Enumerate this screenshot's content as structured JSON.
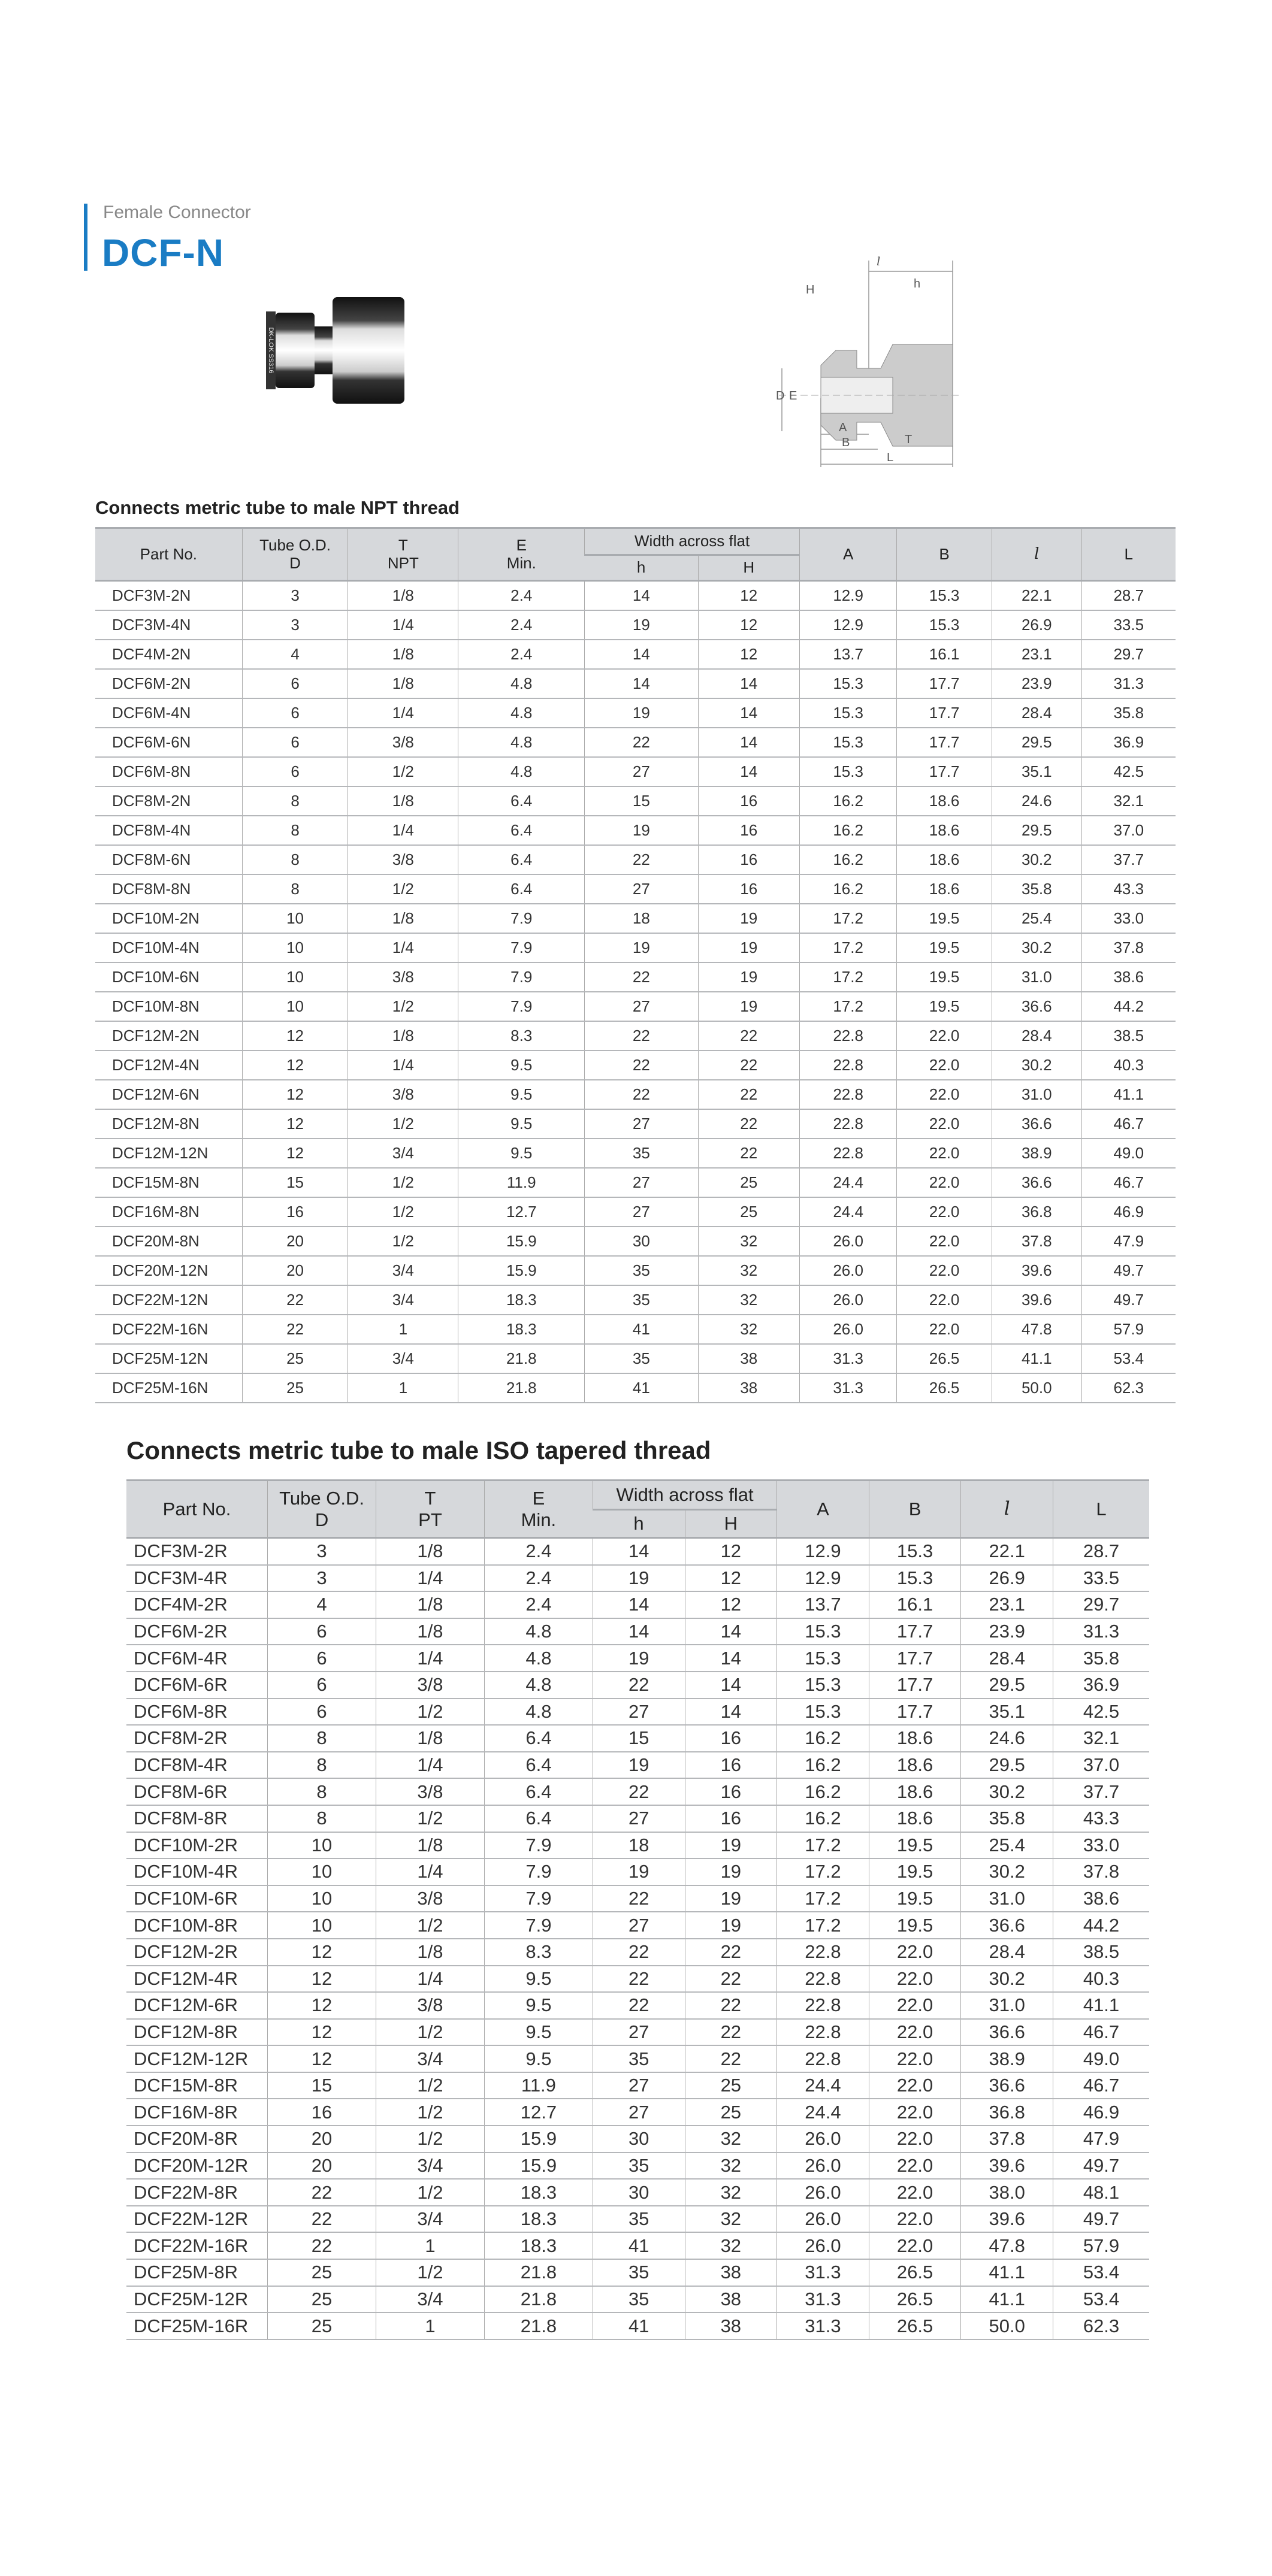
{
  "header": {
    "subtitle": "Female Connector",
    "title": "DCF-N",
    "accent_color": "#1a7cc4"
  },
  "diagram": {
    "labels": {
      "l": "l",
      "h": "h",
      "H": "H",
      "D": "D",
      "E": "E",
      "A": "A",
      "B": "B",
      "T": "T",
      "L": "L"
    }
  },
  "photo": {
    "engraving": "DK-LOK SS316"
  },
  "npt_table": {
    "title": "Connects metric tube to male NPT thread",
    "headers": {
      "part_no": "Part No.",
      "tube_od": "Tube O.D.",
      "tube_od_sub": "D",
      "t": "T",
      "t_sub": "NPT",
      "e": "E",
      "e_sub": "Min.",
      "width_across_flat": "Width across flat",
      "h": "h",
      "H": "H",
      "a": "A",
      "b": "B",
      "l": "l",
      "L": "L"
    },
    "rows": [
      [
        "DCF3M-2N",
        "3",
        "1/8",
        "2.4",
        "14",
        "12",
        "12.9",
        "15.3",
        "22.1",
        "28.7"
      ],
      [
        "DCF3M-4N",
        "3",
        "1/4",
        "2.4",
        "19",
        "12",
        "12.9",
        "15.3",
        "26.9",
        "33.5"
      ],
      [
        "DCF4M-2N",
        "4",
        "1/8",
        "2.4",
        "14",
        "12",
        "13.7",
        "16.1",
        "23.1",
        "29.7"
      ],
      [
        "DCF6M-2N",
        "6",
        "1/8",
        "4.8",
        "14",
        "14",
        "15.3",
        "17.7",
        "23.9",
        "31.3"
      ],
      [
        "DCF6M-4N",
        "6",
        "1/4",
        "4.8",
        "19",
        "14",
        "15.3",
        "17.7",
        "28.4",
        "35.8"
      ],
      [
        "DCF6M-6N",
        "6",
        "3/8",
        "4.8",
        "22",
        "14",
        "15.3",
        "17.7",
        "29.5",
        "36.9"
      ],
      [
        "DCF6M-8N",
        "6",
        "1/2",
        "4.8",
        "27",
        "14",
        "15.3",
        "17.7",
        "35.1",
        "42.5"
      ],
      [
        "DCF8M-2N",
        "8",
        "1/8",
        "6.4",
        "15",
        "16",
        "16.2",
        "18.6",
        "24.6",
        "32.1"
      ],
      [
        "DCF8M-4N",
        "8",
        "1/4",
        "6.4",
        "19",
        "16",
        "16.2",
        "18.6",
        "29.5",
        "37.0"
      ],
      [
        "DCF8M-6N",
        "8",
        "3/8",
        "6.4",
        "22",
        "16",
        "16.2",
        "18.6",
        "30.2",
        "37.7"
      ],
      [
        "DCF8M-8N",
        "8",
        "1/2",
        "6.4",
        "27",
        "16",
        "16.2",
        "18.6",
        "35.8",
        "43.3"
      ],
      [
        "DCF10M-2N",
        "10",
        "1/8",
        "7.9",
        "18",
        "19",
        "17.2",
        "19.5",
        "25.4",
        "33.0"
      ],
      [
        "DCF10M-4N",
        "10",
        "1/4",
        "7.9",
        "19",
        "19",
        "17.2",
        "19.5",
        "30.2",
        "37.8"
      ],
      [
        "DCF10M-6N",
        "10",
        "3/8",
        "7.9",
        "22",
        "19",
        "17.2",
        "19.5",
        "31.0",
        "38.6"
      ],
      [
        "DCF10M-8N",
        "10",
        "1/2",
        "7.9",
        "27",
        "19",
        "17.2",
        "19.5",
        "36.6",
        "44.2"
      ],
      [
        "DCF12M-2N",
        "12",
        "1/8",
        "8.3",
        "22",
        "22",
        "22.8",
        "22.0",
        "28.4",
        "38.5"
      ],
      [
        "DCF12M-4N",
        "12",
        "1/4",
        "9.5",
        "22",
        "22",
        "22.8",
        "22.0",
        "30.2",
        "40.3"
      ],
      [
        "DCF12M-6N",
        "12",
        "3/8",
        "9.5",
        "22",
        "22",
        "22.8",
        "22.0",
        "31.0",
        "41.1"
      ],
      [
        "DCF12M-8N",
        "12",
        "1/2",
        "9.5",
        "27",
        "22",
        "22.8",
        "22.0",
        "36.6",
        "46.7"
      ],
      [
        "DCF12M-12N",
        "12",
        "3/4",
        "9.5",
        "35",
        "22",
        "22.8",
        "22.0",
        "38.9",
        "49.0"
      ],
      [
        "DCF15M-8N",
        "15",
        "1/2",
        "11.9",
        "27",
        "25",
        "24.4",
        "22.0",
        "36.6",
        "46.7"
      ],
      [
        "DCF16M-8N",
        "16",
        "1/2",
        "12.7",
        "27",
        "25",
        "24.4",
        "22.0",
        "36.8",
        "46.9"
      ],
      [
        "DCF20M-8N",
        "20",
        "1/2",
        "15.9",
        "30",
        "32",
        "26.0",
        "22.0",
        "37.8",
        "47.9"
      ],
      [
        "DCF20M-12N",
        "20",
        "3/4",
        "15.9",
        "35",
        "32",
        "26.0",
        "22.0",
        "39.6",
        "49.7"
      ],
      [
        "DCF22M-12N",
        "22",
        "3/4",
        "18.3",
        "35",
        "32",
        "26.0",
        "22.0",
        "39.6",
        "49.7"
      ],
      [
        "DCF22M-16N",
        "22",
        "1",
        "18.3",
        "41",
        "32",
        "26.0",
        "22.0",
        "47.8",
        "57.9"
      ],
      [
        "DCF25M-12N",
        "25",
        "3/4",
        "21.8",
        "35",
        "38",
        "31.3",
        "26.5",
        "41.1",
        "53.4"
      ],
      [
        "DCF25M-16N",
        "25",
        "1",
        "21.8",
        "41",
        "38",
        "31.3",
        "26.5",
        "50.0",
        "62.3"
      ]
    ]
  },
  "iso_table": {
    "title": "Connects metric tube to male ISO tapered thread",
    "headers": {
      "part_no": "Part No.",
      "tube_od": "Tube O.D.",
      "tube_od_sub": "D",
      "t": "T",
      "t_sub": "PT",
      "e": "E",
      "e_sub": "Min.",
      "width_across_flat": "Width across flat",
      "h": "h",
      "H": "H",
      "a": "A",
      "b": "B",
      "l": "l",
      "L": "L"
    },
    "rows": [
      [
        "DCF3M-2R",
        "3",
        "1/8",
        "2.4",
        "14",
        "12",
        "12.9",
        "15.3",
        "22.1",
        "28.7"
      ],
      [
        "DCF3M-4R",
        "3",
        "1/4",
        "2.4",
        "19",
        "12",
        "12.9",
        "15.3",
        "26.9",
        "33.5"
      ],
      [
        "DCF4M-2R",
        "4",
        "1/8",
        "2.4",
        "14",
        "12",
        "13.7",
        "16.1",
        "23.1",
        "29.7"
      ],
      [
        "DCF6M-2R",
        "6",
        "1/8",
        "4.8",
        "14",
        "14",
        "15.3",
        "17.7",
        "23.9",
        "31.3"
      ],
      [
        "DCF6M-4R",
        "6",
        "1/4",
        "4.8",
        "19",
        "14",
        "15.3",
        "17.7",
        "28.4",
        "35.8"
      ],
      [
        "DCF6M-6R",
        "6",
        "3/8",
        "4.8",
        "22",
        "14",
        "15.3",
        "17.7",
        "29.5",
        "36.9"
      ],
      [
        "DCF6M-8R",
        "6",
        "1/2",
        "4.8",
        "27",
        "14",
        "15.3",
        "17.7",
        "35.1",
        "42.5"
      ],
      [
        "DCF8M-2R",
        "8",
        "1/8",
        "6.4",
        "15",
        "16",
        "16.2",
        "18.6",
        "24.6",
        "32.1"
      ],
      [
        "DCF8M-4R",
        "8",
        "1/4",
        "6.4",
        "19",
        "16",
        "16.2",
        "18.6",
        "29.5",
        "37.0"
      ],
      [
        "DCF8M-6R",
        "8",
        "3/8",
        "6.4",
        "22",
        "16",
        "16.2",
        "18.6",
        "30.2",
        "37.7"
      ],
      [
        "DCF8M-8R",
        "8",
        "1/2",
        "6.4",
        "27",
        "16",
        "16.2",
        "18.6",
        "35.8",
        "43.3"
      ],
      [
        "DCF10M-2R",
        "10",
        "1/8",
        "7.9",
        "18",
        "19",
        "17.2",
        "19.5",
        "25.4",
        "33.0"
      ],
      [
        "DCF10M-4R",
        "10",
        "1/4",
        "7.9",
        "19",
        "19",
        "17.2",
        "19.5",
        "30.2",
        "37.8"
      ],
      [
        "DCF10M-6R",
        "10",
        "3/8",
        "7.9",
        "22",
        "19",
        "17.2",
        "19.5",
        "31.0",
        "38.6"
      ],
      [
        "DCF10M-8R",
        "10",
        "1/2",
        "7.9",
        "27",
        "19",
        "17.2",
        "19.5",
        "36.6",
        "44.2"
      ],
      [
        "DCF12M-2R",
        "12",
        "1/8",
        "8.3",
        "22",
        "22",
        "22.8",
        "22.0",
        "28.4",
        "38.5"
      ],
      [
        "DCF12M-4R",
        "12",
        "1/4",
        "9.5",
        "22",
        "22",
        "22.8",
        "22.0",
        "30.2",
        "40.3"
      ],
      [
        "DCF12M-6R",
        "12",
        "3/8",
        "9.5",
        "22",
        "22",
        "22.8",
        "22.0",
        "31.0",
        "41.1"
      ],
      [
        "DCF12M-8R",
        "12",
        "1/2",
        "9.5",
        "27",
        "22",
        "22.8",
        "22.0",
        "36.6",
        "46.7"
      ],
      [
        "DCF12M-12R",
        "12",
        "3/4",
        "9.5",
        "35",
        "22",
        "22.8",
        "22.0",
        "38.9",
        "49.0"
      ],
      [
        "DCF15M-8R",
        "15",
        "1/2",
        "11.9",
        "27",
        "25",
        "24.4",
        "22.0",
        "36.6",
        "46.7"
      ],
      [
        "DCF16M-8R",
        "16",
        "1/2",
        "12.7",
        "27",
        "25",
        "24.4",
        "22.0",
        "36.8",
        "46.9"
      ],
      [
        "DCF20M-8R",
        "20",
        "1/2",
        "15.9",
        "30",
        "32",
        "26.0",
        "22.0",
        "37.8",
        "47.9"
      ],
      [
        "DCF20M-12R",
        "20",
        "3/4",
        "15.9",
        "35",
        "32",
        "26.0",
        "22.0",
        "39.6",
        "49.7"
      ],
      [
        "DCF22M-8R",
        "22",
        "1/2",
        "18.3",
        "30",
        "32",
        "26.0",
        "22.0",
        "38.0",
        "48.1"
      ],
      [
        "DCF22M-12R",
        "22",
        "3/4",
        "18.3",
        "35",
        "32",
        "26.0",
        "22.0",
        "39.6",
        "49.7"
      ],
      [
        "DCF22M-16R",
        "22",
        "1",
        "18.3",
        "41",
        "32",
        "26.0",
        "22.0",
        "47.8",
        "57.9"
      ],
      [
        "DCF25M-8R",
        "25",
        "1/2",
        "21.8",
        "35",
        "38",
        "31.3",
        "26.5",
        "41.1",
        "53.4"
      ],
      [
        "DCF25M-12R",
        "25",
        "3/4",
        "21.8",
        "35",
        "38",
        "31.3",
        "26.5",
        "41.1",
        "53.4"
      ],
      [
        "DCF25M-16R",
        "25",
        "1",
        "21.8",
        "41",
        "38",
        "31.3",
        "26.5",
        "50.0",
        "62.3"
      ]
    ]
  }
}
